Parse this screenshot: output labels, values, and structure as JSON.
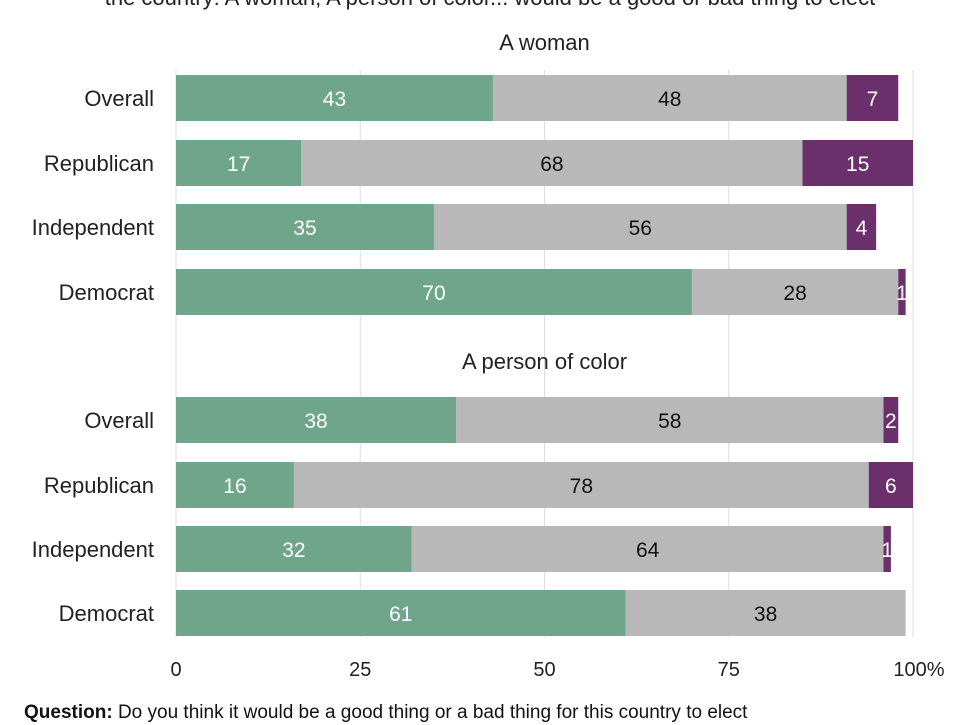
{
  "header": {
    "title_fragment": "the country: A woman; A person of color... would be a good or bad thing to elect"
  },
  "question": {
    "label": "Question:",
    "text": "Do you think it would be a good thing or a bad thing for this country to elect"
  },
  "colors": {
    "good": "#6fa58a",
    "neutral": "#b8b8b8",
    "bad": "#6b2f6b",
    "grid": "#dddddd",
    "label_light": "#ffffff",
    "label_dark": "#111111"
  },
  "chart_data": {
    "type": "bar",
    "orientation": "horizontal",
    "stacked": true,
    "xlim": [
      0,
      100
    ],
    "x_ticks": [
      "0",
      "25",
      "50",
      "75",
      "100%"
    ],
    "x_tick_values": [
      0,
      25,
      50,
      75,
      100
    ],
    "grid": true,
    "panels": [
      {
        "title": "A woman",
        "categories": [
          "Overall",
          "Republican",
          "Independent",
          "Democrat"
        ],
        "series": [
          {
            "key": "good",
            "values": [
              43,
              17,
              35,
              70
            ]
          },
          {
            "key": "neutral",
            "values": [
              48,
              68,
              56,
              28
            ]
          },
          {
            "key": "bad",
            "values": [
              7,
              15,
              4,
              1
            ]
          }
        ]
      },
      {
        "title": "A person of color",
        "categories": [
          "Overall",
          "Republican",
          "Independent",
          "Democrat"
        ],
        "series": [
          {
            "key": "good",
            "values": [
              38,
              16,
              32,
              61
            ]
          },
          {
            "key": "neutral",
            "values": [
              58,
              78,
              64,
              38
            ]
          },
          {
            "key": "bad",
            "values": [
              2,
              6,
              1,
              null
            ]
          }
        ]
      }
    ]
  }
}
